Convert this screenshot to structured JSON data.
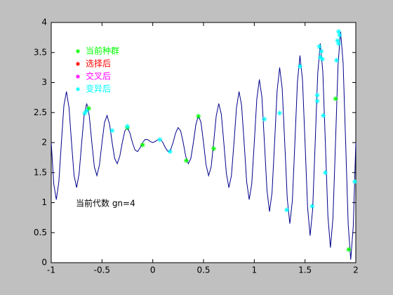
{
  "chart_data": {
    "type": "line",
    "annotation": "当前代数 gn=4",
    "xlim": [
      -1,
      2
    ],
    "ylim": [
      0,
      4
    ],
    "xticks": [
      -1,
      -0.5,
      0,
      0.5,
      1,
      1.5,
      2
    ],
    "yticks": [
      0,
      0.5,
      1,
      1.5,
      2,
      2.5,
      3,
      3.5,
      4
    ],
    "grid": false,
    "legend_position": "upper left",
    "line": {
      "color": "#00008b",
      "x": [
        -1,
        -0.975,
        -0.95,
        -0.925,
        -0.9,
        -0.875,
        -0.85,
        -0.825,
        -0.8,
        -0.775,
        -0.75,
        -0.725,
        -0.7,
        -0.675,
        -0.65,
        -0.625,
        -0.6,
        -0.575,
        -0.55,
        -0.525,
        -0.5,
        -0.475,
        -0.45,
        -0.425,
        -0.4,
        -0.375,
        -0.35,
        -0.325,
        -0.3,
        -0.275,
        -0.25,
        -0.225,
        -0.2,
        -0.175,
        -0.15,
        -0.125,
        -0.1,
        -0.075,
        -0.05,
        -0.025,
        0,
        0.025,
        0.05,
        0.075,
        0.1,
        0.125,
        0.15,
        0.175,
        0.2,
        0.225,
        0.25,
        0.275,
        0.3,
        0.325,
        0.35,
        0.375,
        0.4,
        0.425,
        0.45,
        0.475,
        0.5,
        0.525,
        0.55,
        0.575,
        0.6,
        0.625,
        0.65,
        0.675,
        0.7,
        0.725,
        0.75,
        0.775,
        0.8,
        0.825,
        0.85,
        0.875,
        0.9,
        0.925,
        0.95,
        0.975,
        1,
        1.025,
        1.05,
        1.075,
        1.1,
        1.125,
        1.15,
        1.175,
        1.2,
        1.225,
        1.25,
        1.275,
        1.3,
        1.325,
        1.35,
        1.375,
        1.4,
        1.425,
        1.45,
        1.475,
        1.5,
        1.525,
        1.55,
        1.575,
        1.6,
        1.625,
        1.65,
        1.675,
        1.7,
        1.725,
        1.75,
        1.775,
        1.8,
        1.825,
        1.85,
        1.875,
        1.9,
        1.925,
        1.95,
        1.975,
        2
      ],
      "values": [
        2,
        1.311,
        1.05,
        1.346,
        2,
        2.619,
        2.85,
        2.583,
        2,
        1.452,
        1.25,
        1.487,
        2,
        2.477,
        2.65,
        2.442,
        2,
        1.593,
        1.45,
        1.629,
        2,
        2.336,
        2.45,
        2.301,
        2,
        1.735,
        1.65,
        1.77,
        2,
        2.194,
        2.25,
        2.159,
        2,
        1.876,
        1.85,
        1.912,
        2,
        2.053,
        2.05,
        2.018,
        2,
        2.018,
        2.05,
        2.053,
        2,
        1.912,
        1.85,
        1.876,
        2,
        2.159,
        2.25,
        2.194,
        2,
        1.77,
        1.65,
        1.735,
        2,
        2.301,
        2.45,
        2.336,
        2,
        1.629,
        1.45,
        1.593,
        2,
        2.442,
        2.65,
        2.477,
        2,
        1.487,
        1.25,
        1.452,
        2,
        2.583,
        2.85,
        2.619,
        2,
        1.346,
        1.05,
        1.311,
        2,
        2.725,
        3.05,
        2.76,
        2,
        1.205,
        0.85,
        1.169,
        2,
        2.866,
        3.25,
        2.902,
        2,
        1.063,
        0.65,
        1.028,
        2,
        3.008,
        3.45,
        3.043,
        2,
        0.922,
        0.45,
        0.886,
        2,
        3.149,
        3.65,
        3.184,
        2,
        0.78,
        0.25,
        0.745,
        2,
        3.29,
        3.85,
        3.326,
        2,
        0.639,
        0.05,
        0.603,
        2
      ]
    },
    "series": [
      {
        "name": "当前种群",
        "color": "#00ff00",
        "x": [
          -0.63,
          -0.25,
          -0.1,
          0.33,
          0.45,
          0.6,
          1.8,
          1.93
        ],
        "values": [
          2.57,
          2.25,
          1.96,
          1.7,
          2.44,
          1.9,
          2.73,
          0.22
        ]
      },
      {
        "name": "选择后",
        "color": "#ff0000",
        "x": [],
        "values": []
      },
      {
        "name": "交叉后",
        "color": "#ff00ff",
        "x": [],
        "values": []
      },
      {
        "name": "变异后",
        "color": "#00ffff",
        "x": [
          -0.67,
          -0.65,
          -0.4,
          -0.25,
          0.07,
          0.17,
          1.1,
          1.25,
          1.32,
          1.45,
          1.57,
          1.62,
          1.62,
          1.64,
          1.65,
          1.66,
          1.67,
          1.68,
          1.7,
          1.81,
          1.82,
          1.83,
          1.83,
          1.84,
          1.99
        ],
        "values": [
          2.49,
          2.53,
          2.2,
          2.27,
          2.05,
          1.85,
          2.39,
          2.49,
          0.88,
          3.27,
          0.94,
          2.79,
          2.69,
          3.6,
          3.42,
          3.52,
          3.39,
          2.45,
          1.5,
          3.37,
          3.7,
          3.65,
          3.85,
          3.79,
          1.35
        ]
      }
    ]
  }
}
